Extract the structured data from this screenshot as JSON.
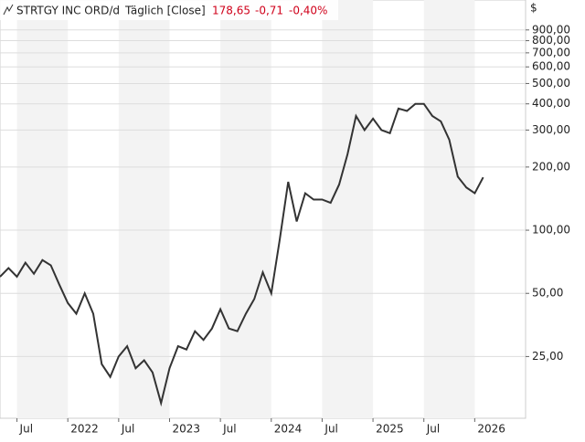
{
  "chart_data": {
    "type": "line",
    "name": "STRTGY INC ORD/d",
    "period": "Täglich [Close]",
    "last": "178,65",
    "change": "-0,71",
    "change_pct": "-0,40%",
    "currency": "$",
    "log_scale": true,
    "grid": true,
    "color": "#333333",
    "x": [
      "2021-05",
      "2021-06",
      "2021-07",
      "2021-08",
      "2021-09",
      "2021-10",
      "2021-11",
      "2021-12",
      "2022-01",
      "2022-02",
      "2022-03",
      "2022-04",
      "2022-05",
      "2022-06",
      "2022-07",
      "2022-08",
      "2022-09",
      "2022-10",
      "2022-11",
      "2022-12",
      "2023-01",
      "2023-02",
      "2023-03",
      "2023-04",
      "2023-05",
      "2023-06",
      "2023-07",
      "2023-08",
      "2023-09",
      "2023-10",
      "2023-11",
      "2023-12",
      "2024-01",
      "2024-02",
      "2024-03",
      "2024-04",
      "2024-05",
      "2024-06",
      "2024-07",
      "2024-08",
      "2024-09",
      "2024-10",
      "2024-11",
      "2024-12",
      "2025-01",
      "2025-02",
      "2025-03",
      "2025-04",
      "2025-05",
      "2025-06",
      "2025-07",
      "2025-08",
      "2025-09",
      "2025-10",
      "2025-11",
      "2025-12",
      "2026-01",
      "2026-02"
    ],
    "values": [
      60,
      66,
      60,
      70,
      62,
      72,
      68,
      55,
      45,
      40,
      50,
      40,
      23,
      20,
      25,
      28,
      22,
      24,
      21,
      15,
      22,
      28,
      27,
      33,
      30,
      34,
      42,
      34,
      33,
      40,
      47,
      63,
      50,
      90,
      170,
      110,
      150,
      140,
      140,
      135,
      165,
      230,
      350,
      300,
      340,
      300,
      290,
      380,
      370,
      400,
      400,
      350,
      330,
      270,
      180,
      160,
      150,
      178.65
    ],
    "xlim": [
      "2021-05",
      "2026-07"
    ],
    "xticks": [
      {
        "value": "2021-07",
        "label": "Jul"
      },
      {
        "value": "2022-01",
        "label": "2022"
      },
      {
        "value": "2022-07",
        "label": "Jul"
      },
      {
        "value": "2023-01",
        "label": "2023"
      },
      {
        "value": "2023-07",
        "label": "Jul"
      },
      {
        "value": "2024-01",
        "label": "2024"
      },
      {
        "value": "2024-07",
        "label": "Jul"
      },
      {
        "value": "2025-01",
        "label": "2025"
      },
      {
        "value": "2025-07",
        "label": "Jul"
      },
      {
        "value": "2026-01",
        "label": "2026"
      }
    ],
    "ylim": [
      12.7,
      1250
    ],
    "yticks": [
      {
        "value": 25,
        "label": "25,00"
      },
      {
        "value": 50,
        "label": "50,00"
      },
      {
        "value": 100,
        "label": "100,00"
      },
      {
        "value": 200,
        "label": "200,00"
      },
      {
        "value": 300,
        "label": "300,00"
      },
      {
        "value": 400,
        "label": "400,00"
      },
      {
        "value": 500,
        "label": "500,00"
      },
      {
        "value": 600,
        "label": "600,00"
      },
      {
        "value": 700,
        "label": "700,00"
      },
      {
        "value": 800,
        "label": "800,00"
      },
      {
        "value": 900,
        "label": "900,00"
      }
    ]
  }
}
